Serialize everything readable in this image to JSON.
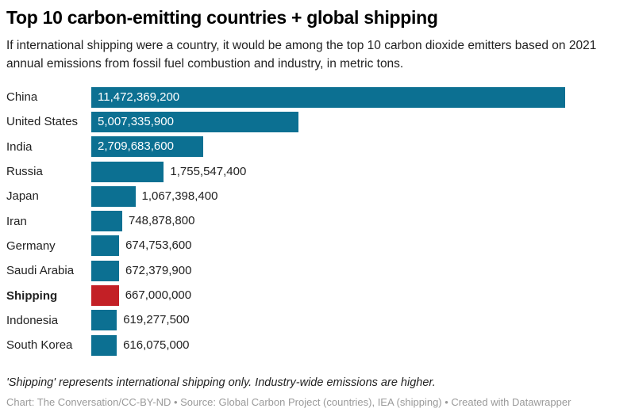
{
  "header": {
    "title": "Top 10 carbon-emitting countries + global shipping",
    "subtitle": "If international shipping were a country, it would be among the top 10 carbon dioxide emitters based on 2021 annual emissions from fossil fuel combustion and industry, in metric tons."
  },
  "chart_data": {
    "type": "bar",
    "orientation": "horizontal",
    "categories": [
      "China",
      "United States",
      "India",
      "Russia",
      "Japan",
      "Iran",
      "Germany",
      "Saudi Arabia",
      "Shipping",
      "Indonesia",
      "South Korea"
    ],
    "values": [
      11472369200,
      5007335900,
      2709683600,
      1755547400,
      1067398400,
      748878800,
      674753600,
      672379900,
      667000000,
      619277500,
      616075000
    ],
    "value_labels": [
      "11,472,369,200",
      "5,007,335,900",
      "2,709,683,600",
      "1,755,547,400",
      "1,067,398,400",
      "748,878,800",
      "674,753,600",
      "672,379,900",
      "667,000,000",
      "619,277,500",
      "616,075,000"
    ],
    "highlight_category": "Shipping",
    "bar_color": "#0c7092",
    "highlight_color": "#c32026",
    "inside_label_color": "#ffffff",
    "outside_label_color": "#222222",
    "xlim": [
      0,
      11472369200
    ],
    "grid": false,
    "legend": false
  },
  "footer": {
    "note": "'Shipping' represents international shipping only. Industry-wide emissions are higher.",
    "credit": "Chart: The Conversation/CC-BY-ND • Source: Global Carbon Project (countries), IEA (shipping) • Created with Datawrapper"
  }
}
